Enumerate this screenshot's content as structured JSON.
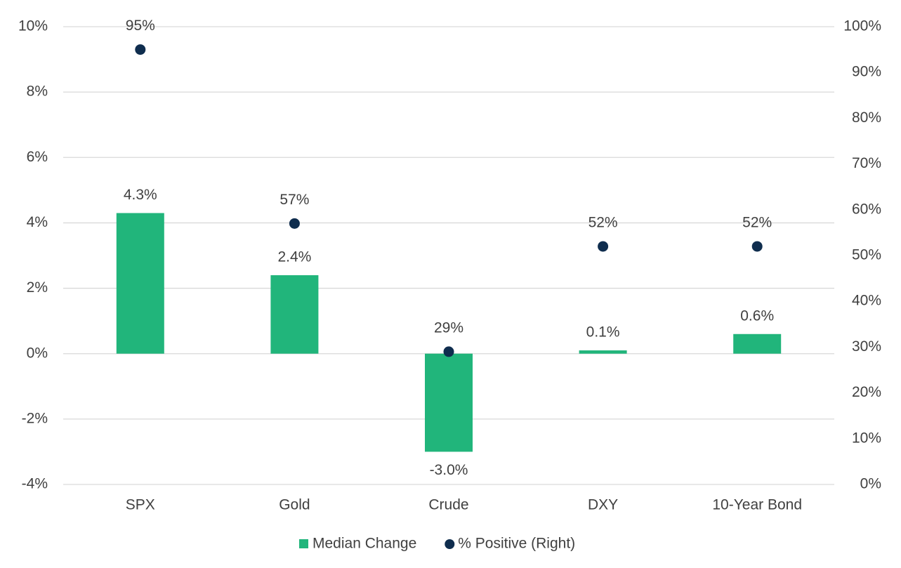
{
  "chart_data": {
    "type": "bar",
    "categories": [
      "SPX",
      "Gold",
      "Crude",
      "DXY",
      "10-Year Bond"
    ],
    "series": [
      {
        "name": "Median Change",
        "type": "bar",
        "color": "#21b57b",
        "axis": "y",
        "values": [
          4.3,
          2.4,
          -3.0,
          0.1,
          0.6
        ],
        "value_labels": [
          "4.3%",
          "2.4%",
          "-3.0%",
          "0.1%",
          "0.6%"
        ]
      },
      {
        "name": "% Positive (Right)",
        "type": "scatter",
        "color": "#0f2d4e",
        "axis": "y2",
        "values": [
          95,
          57,
          29,
          52,
          52
        ],
        "value_labels": [
          "95%",
          "57%",
          "29%",
          "52%",
          "52%"
        ]
      }
    ],
    "ylim": [
      -4,
      10
    ],
    "yticks": [
      {
        "value": -4,
        "label": "-4%"
      },
      {
        "value": -2,
        "label": "-2%"
      },
      {
        "value": 0,
        "label": "0%"
      },
      {
        "value": 2,
        "label": "2%"
      },
      {
        "value": 4,
        "label": "4%"
      },
      {
        "value": 6,
        "label": "6%"
      },
      {
        "value": 8,
        "label": "8%"
      },
      {
        "value": 10,
        "label": "10%"
      }
    ],
    "y2lim": [
      0,
      100
    ],
    "y2ticks": [
      {
        "value": 0,
        "label": "0%"
      },
      {
        "value": 10,
        "label": "10%"
      },
      {
        "value": 20,
        "label": "20%"
      },
      {
        "value": 30,
        "label": "30%"
      },
      {
        "value": 40,
        "label": "40%"
      },
      {
        "value": 50,
        "label": "50%"
      },
      {
        "value": 60,
        "label": "60%"
      },
      {
        "value": 70,
        "label": "70%"
      },
      {
        "value": 80,
        "label": "80%"
      },
      {
        "value": 90,
        "label": "90%"
      },
      {
        "value": 100,
        "label": "100%"
      }
    ],
    "grid": true,
    "legend": "bottom"
  }
}
